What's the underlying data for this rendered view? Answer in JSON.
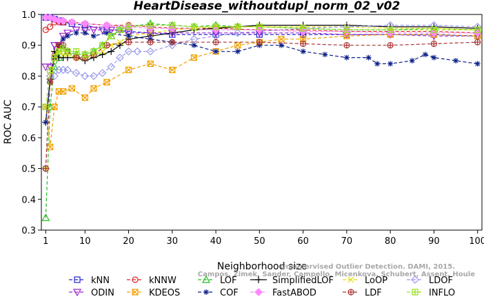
{
  "chart_data": {
    "type": "line",
    "title": "HeartDisease_withoutdupl_norm_02_v02",
    "xlabel": "Neighborhood size",
    "ylabel": "ROC AUC",
    "xlim": [
      0,
      101
    ],
    "ylim": [
      0.3,
      1.0
    ],
    "xticks": [
      1,
      10,
      20,
      30,
      40,
      50,
      60,
      70,
      80,
      90,
      100
    ],
    "yticks": [
      0.3,
      0.4,
      0.5,
      0.6,
      0.7,
      0.8,
      0.9,
      1.0
    ],
    "grid": false,
    "legend_position": "bottom",
    "watermark_lines": [
      "Campos, Zimek, Sander, Campello, Micenkova, Schubert, Assent, Houle",
      "Unsupervised Outlier Detection. DAMI, 2015."
    ],
    "series": [
      {
        "name": "kNN",
        "color": "#2222cc",
        "marker": "square",
        "dash": "5,3",
        "x": [
          1,
          2,
          3,
          4,
          5,
          7,
          10,
          15,
          20,
          25,
          30,
          40,
          50,
          60,
          70,
          80,
          90,
          100
        ],
        "y": [
          0.99,
          0.99,
          0.985,
          0.98,
          0.975,
          0.97,
          0.965,
          0.95,
          0.945,
          0.94,
          0.935,
          0.935,
          0.935,
          0.935,
          0.935,
          0.935,
          0.935,
          0.93
        ]
      },
      {
        "name": "kNNW",
        "color": "#dd2222",
        "marker": "circle",
        "dash": "5,3",
        "x": [
          1,
          2,
          3,
          4,
          5,
          7,
          10,
          15,
          20,
          25,
          30,
          40,
          50,
          60,
          70,
          80,
          90,
          100
        ],
        "y": [
          0.95,
          0.96,
          0.975,
          0.975,
          0.975,
          0.975,
          0.97,
          0.965,
          0.965,
          0.96,
          0.955,
          0.955,
          0.95,
          0.95,
          0.945,
          0.945,
          0.945,
          0.94
        ]
      },
      {
        "name": "LOF",
        "color": "#22bb22",
        "marker": "triangle",
        "dash": "5,3",
        "x": [
          1,
          2,
          3,
          4,
          5,
          6,
          8,
          10,
          12,
          14,
          16,
          18,
          20,
          25,
          30,
          35,
          40,
          45,
          50,
          60,
          70,
          80,
          90,
          100
        ],
        "y": [
          0.34,
          0.7,
          0.83,
          0.86,
          0.89,
          0.88,
          0.87,
          0.87,
          0.88,
          0.9,
          0.93,
          0.95,
          0.96,
          0.97,
          0.965,
          0.96,
          0.965,
          0.96,
          0.96,
          0.955,
          0.95,
          0.95,
          0.955,
          0.95
        ]
      },
      {
        "name": "SimplifiedLOF",
        "color": "#000000",
        "marker": "plus",
        "dash": "",
        "x": [
          1,
          2,
          3,
          4,
          5,
          6,
          8,
          10,
          12,
          14,
          16,
          18,
          20,
          25,
          30,
          35,
          40,
          45,
          50,
          60,
          70,
          80,
          90,
          100
        ],
        "y": [
          0.65,
          0.79,
          0.88,
          0.86,
          0.86,
          0.86,
          0.86,
          0.85,
          0.86,
          0.87,
          0.88,
          0.9,
          0.92,
          0.93,
          0.94,
          0.95,
          0.955,
          0.96,
          0.965,
          0.965,
          0.965,
          0.96,
          0.96,
          0.955
        ]
      },
      {
        "name": "LoOP",
        "color": "#dddd00",
        "marker": "x",
        "dash": "5,3",
        "x": [
          1,
          2,
          3,
          4,
          5,
          6,
          8,
          10,
          12,
          14,
          16,
          18,
          20,
          25,
          30,
          35,
          40,
          45,
          50,
          60,
          70,
          80,
          90,
          100
        ],
        "y": [
          0.5,
          0.8,
          0.87,
          0.88,
          0.87,
          0.87,
          0.86,
          0.86,
          0.87,
          0.88,
          0.9,
          0.91,
          0.93,
          0.94,
          0.95,
          0.955,
          0.96,
          0.96,
          0.96,
          0.96,
          0.96,
          0.955,
          0.955,
          0.95
        ]
      },
      {
        "name": "LDOF",
        "color": "#9999ee",
        "marker": "diamond",
        "dash": "5,3",
        "x": [
          1,
          2,
          3,
          4,
          5,
          6,
          8,
          10,
          12,
          14,
          16,
          18,
          20,
          22,
          25,
          30,
          35,
          40,
          45,
          50,
          60,
          70,
          80,
          90,
          100
        ],
        "y": [
          0.5,
          0.8,
          0.8,
          0.82,
          0.82,
          0.82,
          0.81,
          0.8,
          0.8,
          0.81,
          0.83,
          0.86,
          0.88,
          0.88,
          0.88,
          0.9,
          0.92,
          0.93,
          0.94,
          0.945,
          0.955,
          0.96,
          0.965,
          0.965,
          0.96
        ]
      },
      {
        "name": "ODIN",
        "color": "#9922cc",
        "marker": "triangle-down",
        "dash": "5,3",
        "x": [
          1,
          2,
          3,
          4,
          5,
          6,
          8,
          10,
          12,
          14,
          16,
          18,
          20,
          25,
          30,
          40,
          50,
          60,
          70,
          80,
          90,
          100
        ],
        "y": [
          0.83,
          0.83,
          0.9,
          0.9,
          0.93,
          0.94,
          0.95,
          0.95,
          0.95,
          0.95,
          0.95,
          0.95,
          0.94,
          0.94,
          0.94,
          0.94,
          0.94,
          0.94,
          0.935,
          0.935,
          0.93,
          0.93
        ]
      },
      {
        "name": "KDEOS",
        "color": "#f0a000",
        "marker": "square-x",
        "dash": "5,3",
        "x": [
          1,
          2,
          3,
          4,
          5,
          7,
          10,
          12,
          15,
          20,
          25,
          30,
          35,
          40,
          45,
          50,
          55,
          60,
          70,
          80,
          90,
          100
        ],
        "y": [
          0.7,
          0.57,
          0.7,
          0.75,
          0.75,
          0.76,
          0.73,
          0.76,
          0.78,
          0.82,
          0.84,
          0.82,
          0.86,
          0.88,
          0.9,
          0.91,
          0.92,
          0.92,
          0.93,
          0.935,
          0.935,
          0.93
        ]
      },
      {
        "name": "COF",
        "color": "#0a1e88",
        "marker": "star",
        "dash": "5,3",
        "x": [
          1,
          2,
          3,
          4,
          5,
          6,
          8,
          10,
          12,
          15,
          20,
          25,
          30,
          35,
          40,
          45,
          50,
          55,
          60,
          65,
          70,
          75,
          77,
          80,
          85,
          88,
          90,
          95,
          100
        ],
        "y": [
          0.65,
          0.78,
          0.86,
          0.9,
          0.92,
          0.93,
          0.94,
          0.94,
          0.93,
          0.94,
          0.93,
          0.92,
          0.91,
          0.9,
          0.88,
          0.88,
          0.9,
          0.9,
          0.88,
          0.87,
          0.86,
          0.86,
          0.84,
          0.84,
          0.85,
          0.87,
          0.86,
          0.85,
          0.84
        ]
      },
      {
        "name": "FastABOD",
        "color": "#ff88ff",
        "marker": "diamond-filled",
        "dash": "5,3",
        "x": [
          1,
          2,
          3,
          4,
          5,
          7,
          10,
          15,
          20,
          25,
          30,
          40,
          50,
          60,
          70,
          80,
          90,
          100
        ],
        "y": [
          0.99,
          0.99,
          0.985,
          0.98,
          0.98,
          0.975,
          0.97,
          0.965,
          0.96,
          0.955,
          0.955,
          0.95,
          0.95,
          0.945,
          0.945,
          0.94,
          0.94,
          0.94
        ]
      },
      {
        "name": "LDF",
        "color": "#aa3333",
        "marker": "circle-plus",
        "dash": "5,3",
        "x": [
          1,
          2,
          3,
          4,
          5,
          6,
          8,
          10,
          12,
          15,
          20,
          25,
          30,
          40,
          50,
          60,
          70,
          80,
          90,
          100
        ],
        "y": [
          0.5,
          0.78,
          0.86,
          0.9,
          0.9,
          0.88,
          0.86,
          0.86,
          0.87,
          0.9,
          0.91,
          0.91,
          0.91,
          0.91,
          0.91,
          0.905,
          0.9,
          0.9,
          0.905,
          0.91
        ]
      },
      {
        "name": "INFLO",
        "color": "#99dd22",
        "marker": "square-star",
        "dash": "5,3",
        "x": [
          1,
          2,
          3,
          4,
          5,
          6,
          8,
          10,
          12,
          14,
          16,
          18,
          20,
          25,
          30,
          35,
          40,
          45,
          50,
          60,
          70,
          80,
          90,
          100
        ],
        "y": [
          0.7,
          0.82,
          0.86,
          0.88,
          0.89,
          0.88,
          0.88,
          0.87,
          0.88,
          0.9,
          0.93,
          0.95,
          0.96,
          0.965,
          0.965,
          0.96,
          0.96,
          0.96,
          0.96,
          0.955,
          0.95,
          0.95,
          0.95,
          0.95
        ]
      }
    ]
  },
  "legend_rows": [
    [
      "kNN",
      "kNNW",
      "LOF",
      "SimplifiedLOF",
      "LoOP",
      "LDOF"
    ],
    [
      "ODIN",
      "KDEOS",
      "COF",
      "FastABOD",
      "LDF",
      "INFLO"
    ]
  ]
}
